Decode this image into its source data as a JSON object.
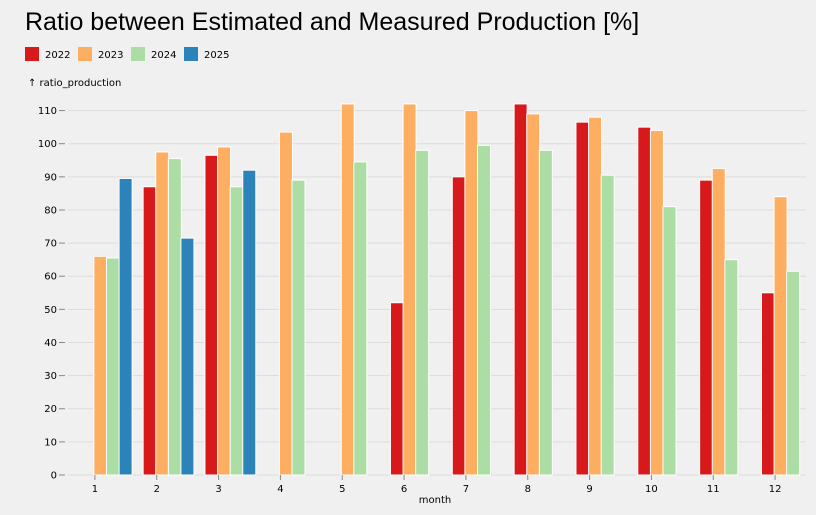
{
  "chart_data": {
    "type": "bar",
    "title": "Ratio between Estimated and Measured Production [%]",
    "xlabel": "month",
    "ylabel": "↑ ratio_production",
    "categories": [
      "1",
      "2",
      "3",
      "4",
      "5",
      "6",
      "7",
      "8",
      "9",
      "10",
      "11",
      "12"
    ],
    "ylim": [
      0,
      115
    ],
    "yticks": [
      0,
      10,
      20,
      30,
      40,
      50,
      60,
      70,
      80,
      90,
      100,
      110
    ],
    "grid": true,
    "legend_position": "top-left",
    "series": [
      {
        "name": "2022",
        "color": "#d7191c",
        "values": [
          null,
          87,
          96.5,
          null,
          null,
          52,
          90,
          112,
          106.5,
          105,
          89,
          55
        ]
      },
      {
        "name": "2023",
        "color": "#fdae61",
        "values": [
          66,
          97.5,
          99,
          103.5,
          112,
          112,
          110,
          109,
          108,
          104,
          92.5,
          84
        ]
      },
      {
        "name": "2024",
        "color": "#abdda4",
        "values": [
          65.5,
          95.5,
          87,
          89,
          94.5,
          98,
          99.5,
          98,
          90.5,
          81,
          65,
          61.5
        ]
      },
      {
        "name": "2025",
        "color": "#2b83ba",
        "values": [
          89.5,
          71.5,
          92,
          null,
          null,
          null,
          null,
          null,
          null,
          null,
          null,
          null
        ]
      }
    ]
  }
}
